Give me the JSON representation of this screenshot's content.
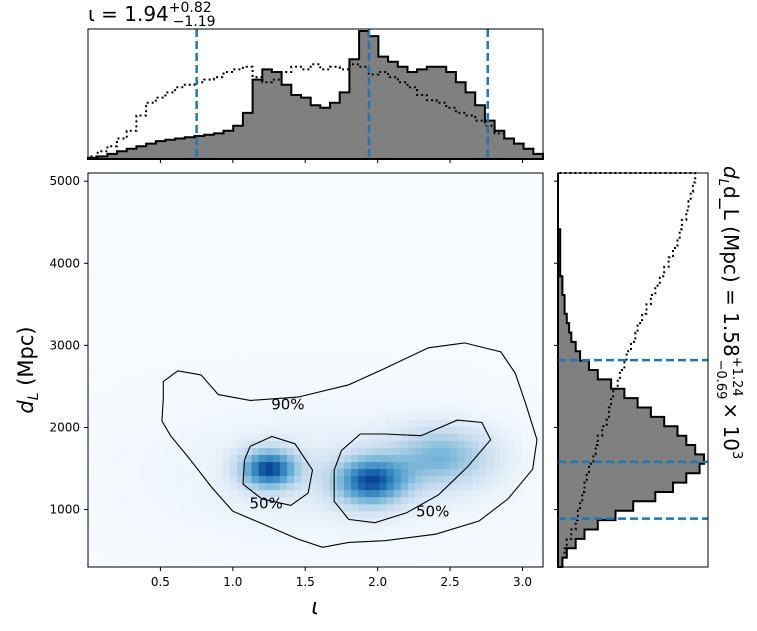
{
  "chart_data": [
    {
      "type": "heatmap",
      "panel": "joint",
      "xlabel": "ι",
      "ylabel": "d_L (Mpc)",
      "xlim": [
        0.0,
        3.14159
      ],
      "ylim": [
        300,
        5100
      ],
      "xticks": [
        "0.5",
        "1.0",
        "1.5",
        "2.0",
        "2.5",
        "3.0"
      ],
      "xtick_values": [
        0.5,
        1.0,
        1.5,
        2.0,
        2.5,
        3.0
      ],
      "yticks": [
        "1000",
        "2000",
        "3000",
        "4000",
        "5000"
      ],
      "ytick_values": [
        1000,
        2000,
        3000,
        4000,
        5000
      ],
      "colormap": "Blues",
      "density_peaks": [
        {
          "x": 1.25,
          "y": 1500,
          "weight": 1.0,
          "sx": 0.14,
          "sy": 170
        },
        {
          "x": 1.95,
          "y": 1350,
          "weight": 0.95,
          "sx": 0.18,
          "sy": 210
        },
        {
          "x": 2.45,
          "y": 1650,
          "weight": 0.55,
          "sx": 0.25,
          "sy": 260
        },
        {
          "x": 1.6,
          "y": 1450,
          "weight": 0.12,
          "sx": 0.8,
          "sy": 600
        }
      ],
      "contours": [
        {
          "label": "90%",
          "label_at": [
            1.38,
            2290
          ],
          "points": [
            [
              0.62,
              2690
            ],
            [
              0.52,
              2560
            ],
            [
              0.52,
              2350
            ],
            [
              0.51,
              2080
            ],
            [
              0.57,
              1900
            ],
            [
              0.7,
              1620
            ],
            [
              0.85,
              1280
            ],
            [
              1.0,
              980
            ],
            [
              1.2,
              830
            ],
            [
              1.45,
              640
            ],
            [
              1.62,
              540
            ],
            [
              1.8,
              600
            ],
            [
              2.05,
              620
            ],
            [
              2.4,
              700
            ],
            [
              2.7,
              860
            ],
            [
              2.9,
              1130
            ],
            [
              3.07,
              1490
            ],
            [
              3.1,
              1850
            ],
            [
              3.02,
              2300
            ],
            [
              2.95,
              2660
            ],
            [
              2.85,
              2920
            ],
            [
              2.6,
              3030
            ],
            [
              2.35,
              2970
            ],
            [
              2.05,
              2720
            ],
            [
              1.8,
              2520
            ],
            [
              1.45,
              2370
            ],
            [
              1.12,
              2330
            ],
            [
              0.9,
              2400
            ],
            [
              0.78,
              2640
            ],
            [
              0.62,
              2690
            ]
          ]
        },
        {
          "label": "50%",
          "label_at": [
            1.23,
            1085
          ],
          "points": [
            [
              1.08,
              1600
            ],
            [
              1.12,
              1770
            ],
            [
              1.27,
              1890
            ],
            [
              1.43,
              1800
            ],
            [
              1.55,
              1480
            ],
            [
              1.52,
              1200
            ],
            [
              1.4,
              1050
            ],
            [
              1.2,
              1130
            ],
            [
              1.07,
              1310
            ],
            [
              1.08,
              1600
            ]
          ]
        },
        {
          "label": "50%",
          "label_at": [
            2.38,
            990
          ],
          "points": [
            [
              1.7,
              1480
            ],
            [
              1.75,
              1720
            ],
            [
              1.88,
              1920
            ],
            [
              2.05,
              1920
            ],
            [
              2.3,
              1900
            ],
            [
              2.55,
              2090
            ],
            [
              2.72,
              2060
            ],
            [
              2.78,
              1850
            ],
            [
              2.62,
              1520
            ],
            [
              2.42,
              1180
            ],
            [
              2.2,
              960
            ],
            [
              1.98,
              840
            ],
            [
              1.8,
              880
            ],
            [
              1.7,
              1100
            ],
            [
              1.7,
              1480
            ]
          ]
        }
      ],
      "grid": false
    },
    {
      "type": "area",
      "panel": "top_marginal",
      "title": "ι = 1.94",
      "title_sup": "+0.82",
      "title_sub": "−1.19",
      "median": 1.94,
      "interval": [
        0.75,
        2.76
      ],
      "bins_x": [
        0.0,
        3.14159
      ],
      "posterior_hist": [
        1,
        2,
        4,
        6,
        8,
        10,
        12,
        14,
        15,
        16,
        17,
        18,
        19,
        20,
        22,
        26,
        36,
        62,
        70,
        68,
        58,
        50,
        48,
        42,
        40,
        44,
        52,
        78,
        100,
        96,
        80,
        76,
        72,
        68,
        70,
        72,
        72,
        68,
        60,
        52,
        42,
        30,
        22,
        16,
        12,
        8,
        4
      ],
      "prior_hist": [
        2,
        6,
        10,
        16,
        22,
        34,
        44,
        48,
        52,
        56,
        58,
        60,
        62,
        64,
        68,
        70,
        72,
        64,
        60,
        62,
        68,
        72,
        70,
        74,
        70,
        72,
        70,
        74,
        72,
        66,
        68,
        64,
        60,
        56,
        50,
        46,
        44,
        40,
        36,
        34,
        30,
        26,
        20,
        16,
        12,
        8,
        4
      ]
    },
    {
      "type": "area",
      "panel": "right_marginal",
      "label_lhs": "d_L (Mpc) = 1.58",
      "label_sup": "+1.24",
      "label_sub": "−0.69",
      "label_tail": "× 10",
      "label_exp": "3",
      "median": 1580,
      "interval": [
        890,
        2820
      ],
      "bins_y": [
        300,
        5100
      ],
      "posterior_hist": [
        2,
        4,
        8,
        12,
        18,
        26,
        34,
        44,
        52,
        58,
        64,
        66,
        62,
        58,
        54,
        48,
        42,
        36,
        30,
        24,
        18,
        14,
        10,
        8,
        6,
        5,
        4,
        3,
        3,
        2,
        2,
        1,
        1,
        1,
        1,
        1,
        0,
        0,
        0,
        0,
        0,
        0
      ],
      "prior_hist": [
        2,
        3,
        4,
        6,
        8,
        9,
        10,
        11,
        12,
        13,
        14,
        16,
        17,
        18,
        20,
        22,
        23,
        24,
        25,
        27,
        28,
        30,
        31,
        33,
        35,
        36,
        38,
        40,
        42,
        44,
        46,
        48,
        50,
        52,
        54,
        55,
        56,
        58,
        59,
        60,
        61,
        62
      ]
    }
  ],
  "colors": {
    "posterior_fill": "#808080",
    "outline": "#000000",
    "interval_lines": "#1f77b4",
    "cmap_low": "#f7fbff",
    "cmap_high": "#08306b"
  }
}
